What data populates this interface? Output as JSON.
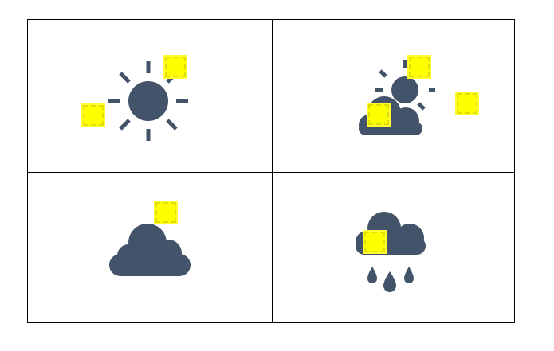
{
  "colors": {
    "icon": "#435369",
    "marker": "#ffff00",
    "grid_line": "#000000",
    "background": "#ffffff"
  },
  "icons": [
    {
      "name": "sun-icon"
    },
    {
      "name": "partly-cloudy-icon"
    },
    {
      "name": "cloud-icon"
    },
    {
      "name": "rain-cloud-icon"
    }
  ]
}
